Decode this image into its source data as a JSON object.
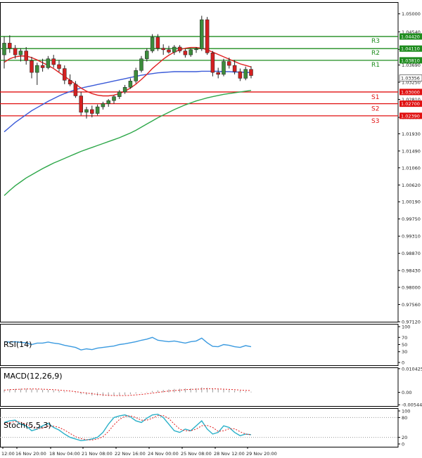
{
  "chart_data": {
    "type": "line",
    "subtype": "candlestick",
    "main": {
      "ylim": [
        0.9712,
        1.053
      ],
      "price_ticks": [
        "1.05000",
        "1.04540",
        "1.04090",
        "1.03690",
        "1.03250",
        "1.02810",
        "1.02350",
        "1.01930",
        "1.01490",
        "1.01060",
        "1.00620",
        "1.00190",
        "0.99750",
        "0.99310",
        "0.98870",
        "0.98430",
        "0.98000",
        "0.97560",
        "0.97120"
      ],
      "ticks_values": [
        1.05,
        1.0454,
        1.0409,
        1.0369,
        1.0325,
        1.0281,
        1.0235,
        1.0193,
        1.0149,
        1.0106,
        1.0062,
        1.0019,
        0.9975,
        0.9931,
        0.9887,
        0.9843,
        0.98,
        0.9756,
        0.9712
      ],
      "current_price": {
        "label": "1.03356",
        "value": 1.03356
      },
      "resistance": [
        {
          "name": "R3",
          "value": 1.0442,
          "label": "1.04420"
        },
        {
          "name": "R2",
          "value": 1.0411,
          "label": "1.04110"
        },
        {
          "name": "R1",
          "value": 1.0381,
          "label": "1.03810"
        }
      ],
      "support": [
        {
          "name": "S1",
          "value": 1.03,
          "label": "1.03000"
        },
        {
          "name": "S2",
          "value": 1.027,
          "label": "1.02700"
        },
        {
          "name": "S3",
          "value": 1.0239,
          "label": "1.02390"
        }
      ],
      "candles": [
        {
          "o": 1.0395,
          "h": 1.0442,
          "l": 1.036,
          "c": 1.0425
        },
        {
          "o": 1.0425,
          "h": 1.0445,
          "l": 1.04,
          "c": 1.0412
        },
        {
          "o": 1.0412,
          "h": 1.042,
          "l": 1.0385,
          "c": 1.0395
        },
        {
          "o": 1.0395,
          "h": 1.0412,
          "l": 1.0378,
          "c": 1.0405
        },
        {
          "o": 1.0405,
          "h": 1.0415,
          "l": 1.037,
          "c": 1.038
        },
        {
          "o": 1.038,
          "h": 1.039,
          "l": 1.0335,
          "c": 1.035
        },
        {
          "o": 1.035,
          "h": 1.0375,
          "l": 1.0318,
          "c": 1.0368
        },
        {
          "o": 1.0368,
          "h": 1.0385,
          "l": 1.0352,
          "c": 1.0362
        },
        {
          "o": 1.0362,
          "h": 1.0392,
          "l": 1.0358,
          "c": 1.0385
        },
        {
          "o": 1.0385,
          "h": 1.0395,
          "l": 1.0362,
          "c": 1.037
        },
        {
          "o": 1.037,
          "h": 1.0382,
          "l": 1.0352,
          "c": 1.036
        },
        {
          "o": 1.036,
          "h": 1.0368,
          "l": 1.032,
          "c": 1.033
        },
        {
          "o": 1.033,
          "h": 1.0345,
          "l": 1.0315,
          "c": 1.032
        },
        {
          "o": 1.032,
          "h": 1.0328,
          "l": 1.0285,
          "c": 1.029
        },
        {
          "o": 1.029,
          "h": 1.03,
          "l": 1.024,
          "c": 1.0248
        },
        {
          "o": 1.0248,
          "h": 1.0262,
          "l": 1.0232,
          "c": 1.0255
        },
        {
          "o": 1.0255,
          "h": 1.0265,
          "l": 1.0235,
          "c": 1.0245
        },
        {
          "o": 1.0245,
          "h": 1.0268,
          "l": 1.024,
          "c": 1.0262
        },
        {
          "o": 1.0262,
          "h": 1.0275,
          "l": 1.0255,
          "c": 1.027
        },
        {
          "o": 1.027,
          "h": 1.0282,
          "l": 1.0262,
          "c": 1.0278
        },
        {
          "o": 1.0278,
          "h": 1.0292,
          "l": 1.027,
          "c": 1.0288
        },
        {
          "o": 1.0288,
          "h": 1.0305,
          "l": 1.0282,
          "c": 1.03
        },
        {
          "o": 1.03,
          "h": 1.0318,
          "l": 1.0295,
          "c": 1.0312
        },
        {
          "o": 1.0312,
          "h": 1.0335,
          "l": 1.0308,
          "c": 1.0328
        },
        {
          "o": 1.0328,
          "h": 1.0362,
          "l": 1.0322,
          "c": 1.0355
        },
        {
          "o": 1.0355,
          "h": 1.0392,
          "l": 1.035,
          "c": 1.0385
        },
        {
          "o": 1.0385,
          "h": 1.0412,
          "l": 1.0378,
          "c": 1.0405
        },
        {
          "o": 1.0405,
          "h": 1.0448,
          "l": 1.04,
          "c": 1.044
        },
        {
          "o": 1.044,
          "h": 1.0448,
          "l": 1.0405,
          "c": 1.0412
        },
        {
          "o": 1.0412,
          "h": 1.0422,
          "l": 1.0395,
          "c": 1.0408
        },
        {
          "o": 1.0408,
          "h": 1.0418,
          "l": 1.0398,
          "c": 1.0402
        },
        {
          "o": 1.0402,
          "h": 1.042,
          "l": 1.0395,
          "c": 1.0415
        },
        {
          "o": 1.0415,
          "h": 1.042,
          "l": 1.04,
          "c": 1.0405
        },
        {
          "o": 1.0405,
          "h": 1.041,
          "l": 1.0388,
          "c": 1.0395
        },
        {
          "o": 1.0395,
          "h": 1.0412,
          "l": 1.039,
          "c": 1.0408
        },
        {
          "o": 1.0408,
          "h": 1.0415,
          "l": 1.04,
          "c": 1.041
        },
        {
          "o": 1.041,
          "h": 1.0495,
          "l": 1.0405,
          "c": 1.0485
        },
        {
          "o": 1.0485,
          "h": 1.0492,
          "l": 1.0395,
          "c": 1.04
        },
        {
          "o": 1.04,
          "h": 1.0405,
          "l": 1.034,
          "c": 1.035
        },
        {
          "o": 1.035,
          "h": 1.0362,
          "l": 1.0335,
          "c": 1.0345
        },
        {
          "o": 1.0345,
          "h": 1.0385,
          "l": 1.034,
          "c": 1.0378
        },
        {
          "o": 1.0378,
          "h": 1.0388,
          "l": 1.036,
          "c": 1.0368
        },
        {
          "o": 1.0368,
          "h": 1.0382,
          "l": 1.0345,
          "c": 1.0352
        },
        {
          "o": 1.0352,
          "h": 1.036,
          "l": 1.0328,
          "c": 1.0335
        },
        {
          "o": 1.0335,
          "h": 1.0365,
          "l": 1.033,
          "c": 1.0358
        },
        {
          "o": 1.0358,
          "h": 1.0366,
          "l": 1.0335,
          "c": 1.0342
        }
      ],
      "ma_red": [
        1.0376,
        1.0385,
        1.039,
        1.0392,
        1.0392,
        1.0388,
        1.0382,
        1.0375,
        1.0368,
        1.036,
        1.035,
        1.034,
        1.033,
        1.032,
        1.031,
        1.0302,
        1.0296,
        1.0292,
        1.029,
        1.029,
        1.0292,
        1.0296,
        1.0302,
        1.031,
        1.032,
        1.0332,
        1.0345,
        1.036,
        1.0372,
        1.0384,
        1.0394,
        1.0402,
        1.0408,
        1.0412,
        1.0414,
        1.0414,
        1.0412,
        1.0408,
        1.0402,
        1.0396,
        1.039,
        1.0384,
        1.0378,
        1.0372,
        1.0368,
        1.0364
      ],
      "ma_blue": [
        1.0198,
        1.021,
        1.0222,
        1.0232,
        1.0242,
        1.0252,
        1.026,
        1.0268,
        1.0276,
        1.0283,
        1.029,
        1.0296,
        1.0301,
        1.0306,
        1.031,
        1.0313,
        1.0316,
        1.0319,
        1.0322,
        1.0325,
        1.0328,
        1.0331,
        1.0334,
        1.0337,
        1.034,
        1.0343,
        1.0345,
        1.0347,
        1.0349,
        1.035,
        1.0351,
        1.0352,
        1.0352,
        1.0352,
        1.0352,
        1.0352,
        1.0353,
        1.0353,
        1.0353,
        1.0353,
        1.0352,
        1.0352,
        1.0351,
        1.0351,
        1.035,
        1.035
      ],
      "ma_green": [
        1.0035,
        1.0048,
        1.006,
        1.007,
        1.008,
        1.0088,
        1.0096,
        1.0104,
        1.0111,
        1.0118,
        1.0124,
        1.013,
        1.0136,
        1.0142,
        1.0148,
        1.0153,
        1.0158,
        1.0163,
        1.0168,
        1.0173,
        1.0178,
        1.0183,
        1.0189,
        1.0195,
        1.0202,
        1.021,
        1.0218,
        1.0226,
        1.0234,
        1.0241,
        1.0248,
        1.0255,
        1.0261,
        1.0267,
        1.0272,
        1.0277,
        1.0281,
        1.0285,
        1.0288,
        1.0291,
        1.0294,
        1.0296,
        1.0298,
        1.03,
        1.0302,
        1.0304
      ]
    },
    "rsi": {
      "label": "RSI(14)",
      "ticks": [
        "100",
        "70",
        "50",
        "30",
        "0"
      ],
      "tick_values": [
        100,
        70,
        50,
        30,
        0
      ],
      "values": [
        58,
        57,
        58,
        56,
        55,
        50,
        54,
        54,
        57,
        54,
        52,
        48,
        45,
        42,
        35,
        38,
        36,
        40,
        42,
        44,
        46,
        50,
        52,
        55,
        58,
        62,
        65,
        70,
        62,
        60,
        58,
        60,
        57,
        54,
        58,
        60,
        68,
        55,
        45,
        44,
        50,
        48,
        44,
        42,
        47,
        44
      ]
    },
    "macd": {
      "label": "MACD(12,26,9)",
      "ticks": [
        "0.010425",
        "0.00",
        "-0.005445"
      ],
      "tick_values": [
        0.010425,
        0,
        -0.005445
      ],
      "histogram": [
        0.0012,
        0.0014,
        0.0015,
        0.0016,
        0.0016,
        0.0015,
        0.0014,
        0.0012,
        0.0011,
        0.0009,
        0.0007,
        0.0004,
        0.0001,
        -0.0003,
        -0.0008,
        -0.0011,
        -0.0014,
        -0.0015,
        -0.0016,
        -0.0016,
        -0.0015,
        -0.0013,
        -0.0011,
        -0.0008,
        -0.0005,
        -0.0002,
        0.0002,
        0.0006,
        0.0009,
        0.0011,
        0.0013,
        0.0015,
        0.0016,
        0.0017,
        0.0018,
        0.0018,
        0.0022,
        0.002,
        0.0016,
        0.0013,
        0.0012,
        0.001,
        0.0008,
        0.0006,
        0.0005,
        0.0003
      ],
      "signal": [
        0.001,
        0.0012,
        0.0013,
        0.0014,
        0.0015,
        0.0015,
        0.0015,
        0.0014,
        0.0013,
        0.0012,
        0.001,
        0.0008,
        0.0006,
        0.0003,
        0.0,
        -0.0003,
        -0.0006,
        -0.0009,
        -0.0011,
        -0.0013,
        -0.0014,
        -0.0014,
        -0.0014,
        -0.0013,
        -0.0011,
        -0.0009,
        -0.0006,
        -0.0003,
        0.0,
        0.0003,
        0.0006,
        0.0008,
        0.001,
        0.0012,
        0.0013,
        0.0014,
        0.0015,
        0.0016,
        0.0016,
        0.0015,
        0.0014,
        0.0013,
        0.0012,
        0.001,
        0.0009,
        0.0008
      ]
    },
    "stoch": {
      "label": "Stoch(5,5,3)",
      "ticks": [
        "100",
        "80",
        "20",
        "0"
      ],
      "tick_values": [
        100,
        80,
        20,
        0
      ],
      "main": [
        65,
        70,
        72,
        60,
        55,
        40,
        45,
        55,
        62,
        50,
        42,
        30,
        20,
        15,
        10,
        12,
        15,
        20,
        35,
        60,
        80,
        85,
        88,
        82,
        70,
        65,
        78,
        88,
        90,
        80,
        60,
        40,
        35,
        45,
        40,
        55,
        70,
        45,
        30,
        35,
        55,
        50,
        35,
        25,
        30,
        28
      ],
      "signal": [
        60,
        64,
        68,
        66,
        60,
        52,
        46,
        48,
        54,
        54,
        50,
        42,
        32,
        22,
        16,
        13,
        12,
        15,
        22,
        38,
        58,
        74,
        84,
        85,
        80,
        72,
        72,
        78,
        86,
        86,
        77,
        60,
        45,
        40,
        40,
        45,
        55,
        56,
        50,
        38,
        40,
        46,
        46,
        37,
        30,
        28
      ]
    },
    "x_labels": [
      "12:00",
      "16 Nov 20:00",
      "18 Nov 04:00",
      "21 Nov 08:00",
      "22 Nov 16:00",
      "24 Nov 00:00",
      "25 Nov 08:00",
      "28 Nov 12:00",
      "29 Nov 20:00"
    ],
    "colors": {
      "bull": "#3c8c3c",
      "bear": "#d42020",
      "ma_red": "#e02020",
      "ma_blue": "#3a5ad8",
      "ma_green": "#2ea84a",
      "resistance": "#1e8c1e",
      "support": "#e01010",
      "rsi": "#3a9ae0",
      "macd_signal": "#e02020",
      "stoch_main": "#2ab0c8",
      "stoch_signal": "#e02020"
    }
  }
}
